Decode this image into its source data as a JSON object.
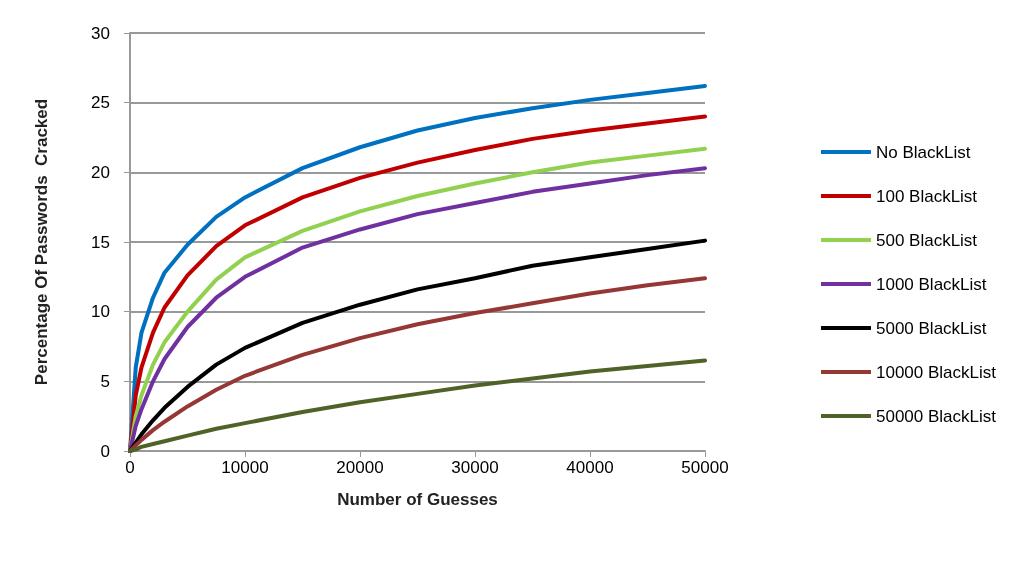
{
  "chart_data": {
    "type": "line",
    "xlabel": "Number of Guesses",
    "ylabel": "Percentage Of Passwords  Cracked",
    "x": [
      0,
      500,
      1000,
      2000,
      3000,
      5000,
      7500,
      10000,
      15000,
      20000,
      25000,
      30000,
      35000,
      40000,
      45000,
      50000
    ],
    "xlim": [
      0,
      50000
    ],
    "xticks": [
      0,
      10000,
      20000,
      30000,
      40000,
      50000
    ],
    "ylim": [
      0,
      30
    ],
    "yticks": [
      0,
      5,
      10,
      15,
      20,
      25,
      30
    ],
    "grid": "y",
    "legend": "right",
    "marker": "none",
    "line_style": "solid",
    "series": [
      {
        "name": "No BlackList",
        "color": "#0070c0",
        "values": [
          0,
          6,
          8.5,
          11,
          12.8,
          14.8,
          16.8,
          18.2,
          20.3,
          21.8,
          23,
          23.9,
          24.6,
          25.2,
          25.7,
          26.2
        ]
      },
      {
        "name": "100 BlackList",
        "color": "#c00000",
        "values": [
          0,
          4,
          6,
          8.5,
          10.3,
          12.6,
          14.7,
          16.2,
          18.2,
          19.6,
          20.7,
          21.6,
          22.4,
          23,
          23.5,
          24
        ]
      },
      {
        "name": "500 BlackList",
        "color": "#92d050",
        "values": [
          0,
          2.5,
          4,
          6.2,
          7.8,
          10,
          12.3,
          13.9,
          15.8,
          17.2,
          18.3,
          19.2,
          20,
          20.7,
          21.2,
          21.7
        ]
      },
      {
        "name": "1000 BlackList",
        "color": "#7030a0",
        "values": [
          0,
          1.8,
          3,
          5,
          6.6,
          8.9,
          11,
          12.5,
          14.6,
          15.9,
          17,
          17.8,
          18.6,
          19.2,
          19.8,
          20.3
        ]
      },
      {
        "name": "5000 BlackList",
        "color": "#000000",
        "values": [
          0,
          0.6,
          1.2,
          2.2,
          3.1,
          4.6,
          6.2,
          7.4,
          9.2,
          10.5,
          11.6,
          12.4,
          13.3,
          13.9,
          14.5,
          15.1
        ]
      },
      {
        "name": "10000 BlackList",
        "color": "#953735",
        "values": [
          0,
          0.4,
          0.8,
          1.5,
          2.1,
          3.2,
          4.4,
          5.4,
          6.9,
          8.1,
          9.1,
          9.9,
          10.6,
          11.3,
          11.9,
          12.4
        ]
      },
      {
        "name": "50000 BlackList",
        "color": "#4f6228",
        "values": [
          0,
          0.1,
          0.3,
          0.5,
          0.7,
          1.1,
          1.6,
          2,
          2.8,
          3.5,
          4.1,
          4.7,
          5.2,
          5.7,
          6.1,
          6.5
        ]
      }
    ]
  }
}
